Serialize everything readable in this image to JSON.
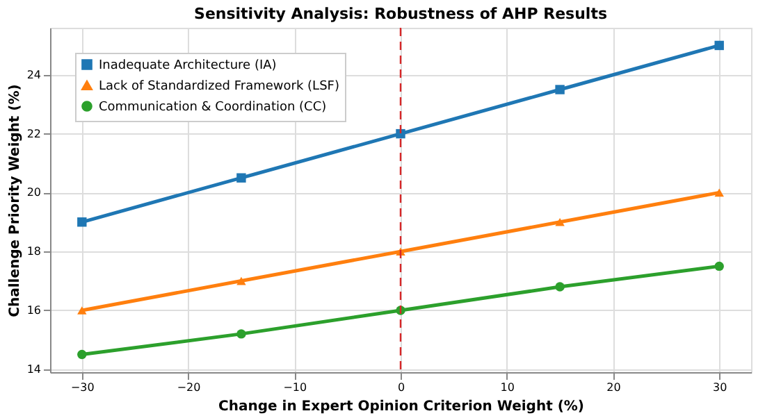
{
  "chart_data": {
    "type": "line",
    "title": "Sensitivity Analysis: Robustness of AHP Results",
    "xlabel": "Change in Expert Opinion Criterion Weight (%)",
    "ylabel": "Challenge Priority Weight (%)",
    "x": [
      -30,
      -15,
      0,
      15,
      30
    ],
    "series": [
      {
        "name": "Inadequate Architecture (IA)",
        "color": "#1f77b4",
        "marker": "square",
        "values": [
          19,
          20.5,
          22,
          23.5,
          25
        ]
      },
      {
        "name": "Lack of Standardized Framework (LSF)",
        "color": "#ff7f0e",
        "marker": "triangle",
        "values": [
          16,
          17,
          18,
          19,
          20
        ]
      },
      {
        "name": "Communication & Coordination (CC)",
        "color": "#2ca02c",
        "marker": "circle",
        "values": [
          14.5,
          15.2,
          16,
          16.8,
          17.5
        ]
      }
    ],
    "xlim": [
      -33,
      33
    ],
    "xticks": [
      -30,
      -20,
      -10,
      0,
      10,
      20,
      30
    ],
    "ylim": [
      13.9,
      25.6
    ],
    "yticks": [
      14,
      16,
      18,
      20,
      22,
      24
    ],
    "ref_lines": [
      {
        "axis": "x",
        "value": 0,
        "color": "#d62728",
        "line_style": "dashed"
      }
    ],
    "grid": true,
    "legend": "top left",
    "line_style": "solid"
  }
}
